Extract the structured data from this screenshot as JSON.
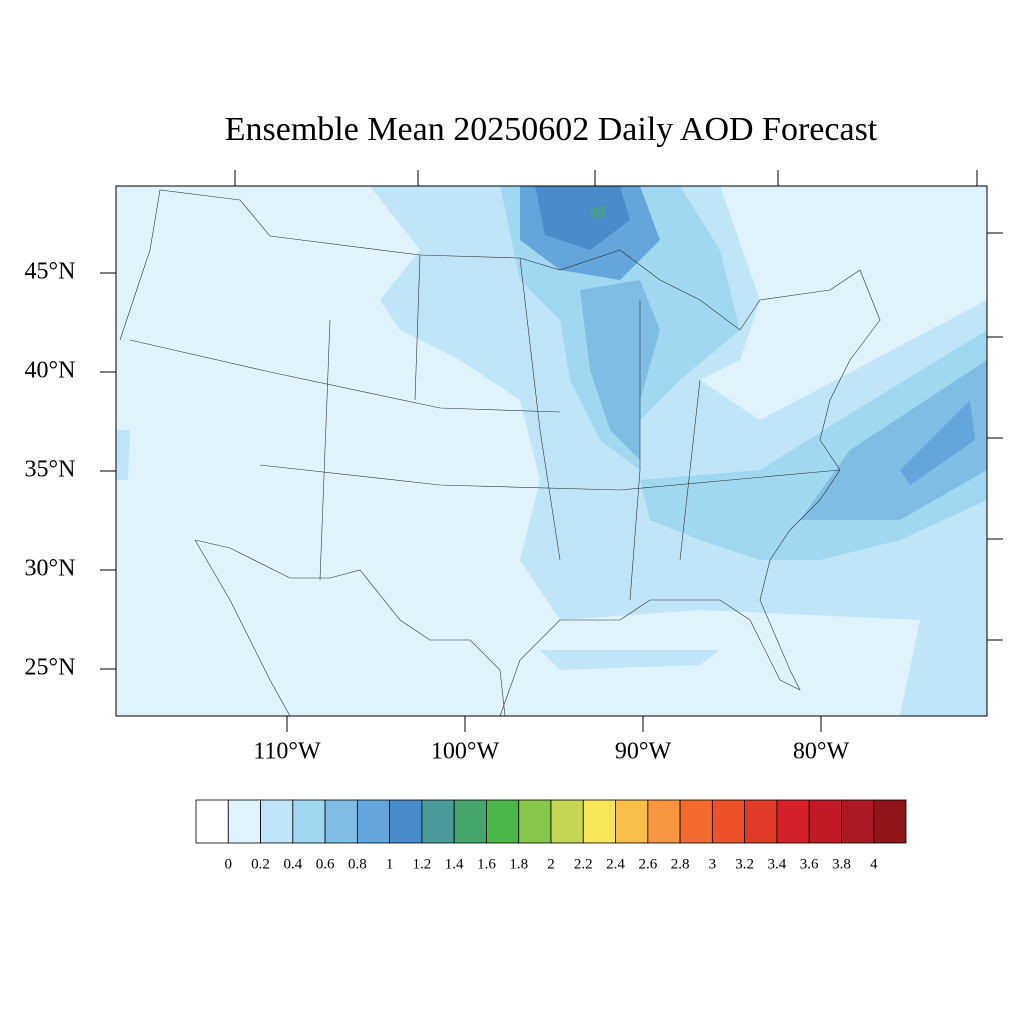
{
  "title": "Ensemble Mean 20250602 Daily AOD Forecast",
  "map": {
    "lat_labels": [
      {
        "value": 45,
        "label": "45°N"
      },
      {
        "value": 40,
        "label": "40°N"
      },
      {
        "value": 35,
        "label": "35°N"
      },
      {
        "value": 30,
        "label": "30°N"
      },
      {
        "value": 25,
        "label": "25°N"
      }
    ],
    "lon_labels": [
      {
        "value": -110,
        "label": "110°W"
      },
      {
        "value": -100,
        "label": "100°W"
      },
      {
        "value": -90,
        "label": "90°W"
      },
      {
        "value": -80,
        "label": "80°W"
      }
    ]
  },
  "colorbar": {
    "levels": [
      0,
      0.2,
      0.4,
      0.6,
      0.8,
      1,
      1.2,
      1.4,
      1.6,
      1.8,
      2,
      2.2,
      2.4,
      2.6,
      2.8,
      3,
      3.2,
      3.4,
      3.6,
      3.8,
      4
    ],
    "colors": [
      "#ffffff",
      "#e0f3fb",
      "#bfe6f7",
      "#a0d8f2",
      "#80bde5",
      "#64a6db",
      "#4a8bca",
      "#4a9a9a",
      "#46a56d",
      "#4cb748",
      "#86c64a",
      "#c5d655",
      "#f8e75a",
      "#f8bf4a",
      "#f7963e",
      "#f26a2c",
      "#ec5129",
      "#e03a28",
      "#d42028",
      "#c11b25",
      "#aa1a22",
      "#901518"
    ]
  }
}
